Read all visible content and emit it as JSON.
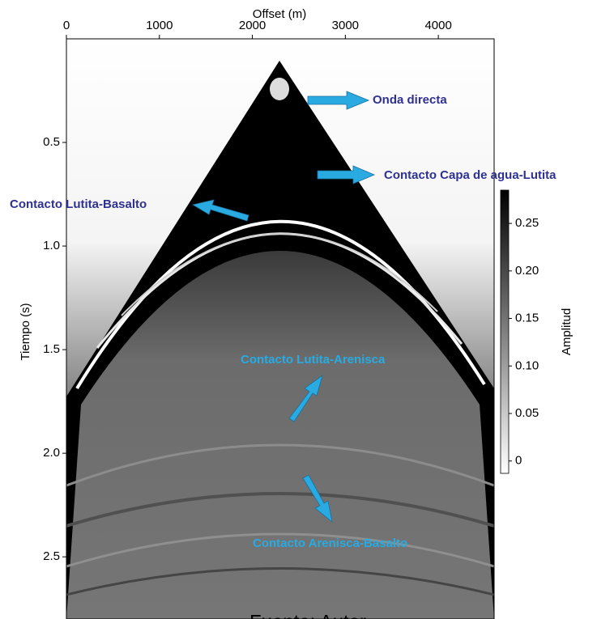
{
  "chart_data": {
    "type": "image",
    "x_label": "Offset (m)",
    "y_label": "Tiempo (s)",
    "xlim": [
      0,
      4600
    ],
    "xticks": [
      0,
      1000,
      2000,
      3000,
      4000
    ],
    "ylim": [
      0.0,
      2.8
    ],
    "yticks": [
      {
        "value": 0.5,
        "label": "0.5"
      },
      {
        "value": 1.0,
        "label": "1.0"
      },
      {
        "value": 1.5,
        "label": "1.5"
      },
      {
        "value": 2.0,
        "label": "2.0"
      },
      {
        "value": 2.5,
        "label": "2.5"
      }
    ],
    "colorbar": {
      "label": "Amplitud",
      "clim": [
        -0.013,
        0.285
      ],
      "ticks": [
        0,
        0.05,
        {
          "value": 0.1,
          "label": "0.10"
        },
        0.15,
        {
          "value": 0.2,
          "label": "0.20"
        },
        0.25
      ],
      "colors": [
        "#ffffff",
        "#000000"
      ]
    },
    "annotations": [
      {
        "text": "Onda directa",
        "color": "#2e3192"
      },
      {
        "text": "Contacto Capa de agua-Lutita",
        "color": "#2e3192"
      },
      {
        "text": "Contacto Lutita-Basalto",
        "color": "#2e3192"
      },
      {
        "text": "Contacto Lutita-Arenisca",
        "color": "#29abe2"
      },
      {
        "text": "Contacto Arenisca-Basalto",
        "color": "#29abe2"
      }
    ],
    "caption": "Fuente: Autor"
  }
}
